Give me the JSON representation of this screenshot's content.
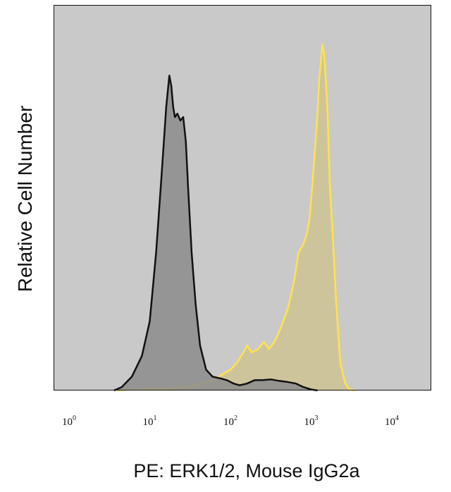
{
  "chart_data": {
    "type": "area",
    "title": "",
    "xlabel": "PE: ERK1/2, Mouse IgG2a",
    "ylabel": "Relative Cell Number",
    "x_scale": "log",
    "xlim": [
      1,
      10000
    ],
    "ylim": [
      0,
      1
    ],
    "grid": false,
    "legend": "none",
    "x_ticks": [
      {
        "base": "10",
        "exp": "0",
        "value": 1
      },
      {
        "base": "10",
        "exp": "1",
        "value": 10
      },
      {
        "base": "10",
        "exp": "2",
        "value": 100
      },
      {
        "base": "10",
        "exp": "3",
        "value": 1000
      },
      {
        "base": "10",
        "exp": "4",
        "value": 10000
      }
    ],
    "plot_background": "#c9c9c9",
    "series": [
      {
        "stroke": "#ffe34d",
        "fill": "#cfc394",
        "x": [
          4,
          6,
          10,
          17,
          30,
          60,
          100,
          120,
          145,
          160,
          185,
          220,
          260,
          300,
          350,
          420,
          520,
          620,
          700,
          790,
          880,
          960,
          1040,
          1120,
          1200,
          1260,
          1320,
          1380,
          1450,
          1520,
          1600,
          1700,
          1850,
          2050,
          2300,
          2650,
          3000,
          3500
        ],
        "y": [
          0,
          0.003,
          0.005,
          0.005,
          0.01,
          0.03,
          0.06,
          0.08,
          0.11,
          0.13,
          0.11,
          0.12,
          0.14,
          0.12,
          0.14,
          0.18,
          0.24,
          0.32,
          0.4,
          0.42,
          0.45,
          0.5,
          0.6,
          0.7,
          0.8,
          0.9,
          0.95,
          1.0,
          0.97,
          0.9,
          0.8,
          0.6,
          0.45,
          0.25,
          0.08,
          0.02,
          0.003,
          0
        ]
      },
      {
        "stroke": "#111111",
        "fill": "#8c8c8c",
        "x": [
          3.6,
          4.5,
          6,
          8,
          10,
          12,
          14,
          16,
          17.5,
          18.5,
          19.5,
          20.5,
          22,
          24,
          26,
          28,
          30,
          33,
          37,
          42,
          50,
          60,
          75,
          90,
          110,
          130,
          160,
          200,
          250,
          320,
          400,
          500,
          650,
          800,
          1000,
          1200
        ],
        "y": [
          0,
          0.01,
          0.04,
          0.1,
          0.2,
          0.4,
          0.62,
          0.82,
          0.91,
          0.88,
          0.82,
          0.79,
          0.8,
          0.78,
          0.79,
          0.72,
          0.58,
          0.4,
          0.25,
          0.13,
          0.06,
          0.04,
          0.035,
          0.03,
          0.02,
          0.015,
          0.02,
          0.03,
          0.03,
          0.032,
          0.028,
          0.025,
          0.02,
          0.01,
          0.003,
          0
        ]
      }
    ]
  }
}
